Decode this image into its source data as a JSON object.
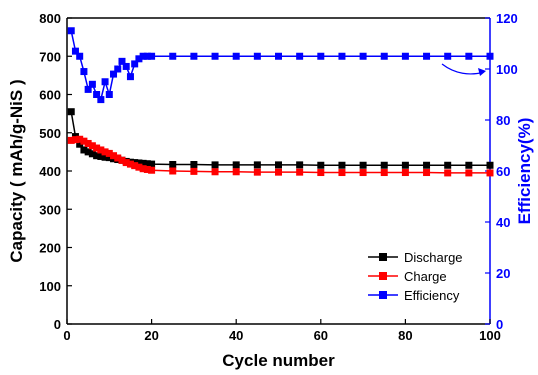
{
  "chart_data": {
    "type": "line",
    "title": "",
    "xlabel": "Cycle number",
    "ylabel": "Capacity ( mAh/g-NiS )",
    "y2label": "Efficiency(%)",
    "xlim": [
      0,
      100
    ],
    "ylim": [
      0,
      800
    ],
    "y2lim": [
      0,
      120
    ],
    "xticks": [
      0,
      20,
      40,
      60,
      80,
      100
    ],
    "yticks": [
      0,
      100,
      200,
      300,
      400,
      500,
      600,
      700,
      800
    ],
    "y2ticks": [
      0,
      20,
      40,
      60,
      80,
      100,
      120
    ],
    "grid": false,
    "legend_position": "bottom-right",
    "annotations": [
      "arrow pointing from efficiency curve to right axis"
    ],
    "series": [
      {
        "name": "Discharge",
        "axis": "left",
        "color": "#000000",
        "marker": "square",
        "x": [
          1,
          2,
          3,
          4,
          5,
          6,
          7,
          8,
          9,
          10,
          11,
          12,
          13,
          14,
          15,
          16,
          17,
          18,
          19,
          20,
          25,
          30,
          35,
          40,
          45,
          50,
          55,
          60,
          65,
          70,
          75,
          80,
          85,
          90,
          95,
          100
        ],
        "y": [
          555,
          490,
          470,
          455,
          450,
          445,
          440,
          438,
          436,
          435,
          432,
          430,
          428,
          425,
          423,
          422,
          421,
          420,
          419,
          418,
          417,
          417,
          416,
          416,
          416,
          416,
          416,
          415,
          415,
          415,
          415,
          415,
          415,
          415,
          415,
          415
        ]
      },
      {
        "name": "Charge",
        "axis": "left",
        "color": "#ff0000",
        "marker": "square",
        "x": [
          1,
          2,
          3,
          4,
          5,
          6,
          7,
          8,
          9,
          10,
          11,
          12,
          13,
          14,
          15,
          16,
          17,
          18,
          19,
          20,
          25,
          30,
          35,
          40,
          45,
          50,
          55,
          60,
          65,
          70,
          75,
          80,
          85,
          90,
          95,
          100
        ],
        "y": [
          480,
          482,
          483,
          478,
          472,
          466,
          460,
          455,
          450,
          446,
          440,
          434,
          428,
          422,
          418,
          414,
          410,
          406,
          404,
          402,
          400,
          399,
          398,
          398,
          397,
          397,
          397,
          396,
          396,
          396,
          396,
          396,
          396,
          395,
          395,
          395
        ]
      },
      {
        "name": "Efficiency",
        "axis": "right",
        "color": "#0000ff",
        "marker": "square",
        "x": [
          1,
          2,
          3,
          4,
          5,
          6,
          7,
          8,
          9,
          10,
          11,
          12,
          13,
          14,
          15,
          16,
          17,
          18,
          19,
          20,
          25,
          30,
          35,
          40,
          45,
          50,
          55,
          60,
          65,
          70,
          75,
          80,
          85,
          90,
          95,
          100
        ],
        "y": [
          115,
          107,
          105,
          99,
          92,
          94,
          90,
          88,
          95,
          90,
          98,
          100,
          103,
          101,
          97,
          102,
          104,
          105,
          105,
          105,
          105,
          105,
          105,
          105,
          105,
          105,
          105,
          105,
          105,
          105,
          105,
          105,
          105,
          105,
          105,
          105
        ]
      }
    ]
  }
}
